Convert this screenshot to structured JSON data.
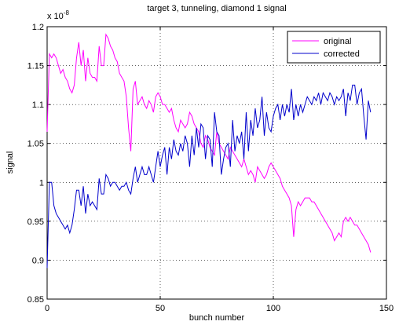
{
  "chart_data": {
    "type": "line",
    "title": "target 3, tunneling, diamond 1 signal",
    "x_label": "bunch number",
    "y_label": "signal",
    "y_multiplier": {
      "base": "x 10",
      "exponent": "-8"
    },
    "x": [
      0,
      1,
      2,
      3,
      4,
      5,
      6,
      7,
      8,
      9,
      10,
      11,
      12,
      13,
      14,
      15,
      16,
      17,
      18,
      19,
      20,
      21,
      22,
      23,
      24,
      25,
      26,
      27,
      28,
      29,
      30,
      31,
      32,
      33,
      34,
      35,
      36,
      37,
      38,
      39,
      40,
      41,
      42,
      43,
      44,
      45,
      46,
      47,
      48,
      49,
      50,
      51,
      52,
      53,
      54,
      55,
      56,
      57,
      58,
      59,
      60,
      61,
      62,
      63,
      64,
      65,
      66,
      67,
      68,
      69,
      70,
      71,
      72,
      73,
      74,
      75,
      76,
      77,
      78,
      79,
      80,
      81,
      82,
      83,
      84,
      85,
      86,
      87,
      88,
      89,
      90,
      91,
      92,
      93,
      94,
      95,
      96,
      97,
      98,
      99,
      100,
      101,
      102,
      103,
      104,
      105,
      106,
      107,
      108,
      109,
      110,
      111,
      112,
      113,
      114,
      115,
      116,
      117,
      118,
      119,
      120,
      121,
      122,
      123,
      124,
      125,
      126,
      127,
      128,
      129,
      130,
      131,
      132,
      133,
      134,
      135,
      136,
      137,
      138,
      139,
      140,
      141,
      142,
      143
    ],
    "series": [
      {
        "name": "original",
        "color": "#ff00ff",
        "values": [
          1.065,
          1.165,
          1.16,
          1.165,
          1.16,
          1.15,
          1.14,
          1.145,
          1.135,
          1.13,
          1.12,
          1.115,
          1.125,
          1.16,
          1.18,
          1.15,
          1.17,
          1.13,
          1.16,
          1.14,
          1.135,
          1.135,
          1.13,
          1.175,
          1.15,
          1.15,
          1.19,
          1.185,
          1.175,
          1.17,
          1.16,
          1.155,
          1.14,
          1.135,
          1.13,
          1.11,
          1.07,
          1.04,
          1.12,
          1.13,
          1.1,
          1.105,
          1.11,
          1.1,
          1.095,
          1.105,
          1.1,
          1.09,
          1.11,
          1.115,
          1.11,
          1.1,
          1.1,
          1.095,
          1.09,
          1.095,
          1.08,
          1.07,
          1.065,
          1.08,
          1.075,
          1.07,
          1.075,
          1.09,
          1.085,
          1.075,
          1.07,
          1.065,
          1.05,
          1.045,
          1.06,
          1.055,
          1.045,
          1.04,
          1.035,
          1.065,
          1.05,
          1.045,
          1.04,
          1.035,
          1.03,
          1.045,
          1.04,
          1.035,
          1.03,
          1.025,
          1.02,
          1.03,
          1.02,
          1.01,
          1.015,
          1.01,
          1.0,
          1.02,
          1.015,
          1.01,
          1.005,
          1.01,
          1.02,
          1.025,
          1.02,
          1.015,
          1.01,
          1.005,
          0.995,
          0.99,
          0.985,
          0.98,
          0.97,
          0.93,
          0.965,
          0.975,
          0.97,
          0.975,
          0.98,
          0.98,
          0.98,
          0.975,
          0.975,
          0.97,
          0.965,
          0.96,
          0.955,
          0.95,
          0.945,
          0.94,
          0.935,
          0.925,
          0.93,
          0.935,
          0.93,
          0.95,
          0.955,
          0.95,
          0.955,
          0.95,
          0.945,
          0.945,
          0.94,
          0.935,
          0.93,
          0.925,
          0.92,
          0.91
        ]
      },
      {
        "name": "corrected",
        "color": "#0000cc",
        "values": [
          0.89,
          1.0,
          1.0,
          0.97,
          0.96,
          0.955,
          0.95,
          0.945,
          0.94,
          0.945,
          0.935,
          0.945,
          0.965,
          0.99,
          0.99,
          0.97,
          0.995,
          0.96,
          0.985,
          0.97,
          0.975,
          0.97,
          0.965,
          1.005,
          0.985,
          0.985,
          1.01,
          1.005,
          0.995,
          1.0,
          1.0,
          0.995,
          0.99,
          0.995,
          0.995,
          1.0,
          0.99,
          0.985,
          1.005,
          1.02,
          1.0,
          1.01,
          1.02,
          1.01,
          1.01,
          1.02,
          1.01,
          1.0,
          1.02,
          1.04,
          1.02,
          1.035,
          1.045,
          1.01,
          1.045,
          1.03,
          1.055,
          1.04,
          1.035,
          1.05,
          1.04,
          1.06,
          1.05,
          1.02,
          1.06,
          1.035,
          1.07,
          1.045,
          1.075,
          1.07,
          1.03,
          1.06,
          1.055,
          1.02,
          1.09,
          1.065,
          1.06,
          1.01,
          1.03,
          1.045,
          1.05,
          1.02,
          1.08,
          1.04,
          1.06,
          1.05,
          1.065,
          1.03,
          1.09,
          1.04,
          1.08,
          1.06,
          1.095,
          1.07,
          1.08,
          1.11,
          1.06,
          1.09,
          1.07,
          1.065,
          1.085,
          1.095,
          1.1,
          1.08,
          1.1,
          1.085,
          1.1,
          1.09,
          1.12,
          1.08,
          1.1,
          1.085,
          1.1,
          1.09,
          1.1,
          1.11,
          1.105,
          1.1,
          1.11,
          1.105,
          1.115,
          1.1,
          1.115,
          1.11,
          1.105,
          1.115,
          1.11,
          1.1,
          1.11,
          1.105,
          1.11,
          1.12,
          1.085,
          1.115,
          1.105,
          1.125,
          1.125,
          1.1,
          1.115,
          1.12,
          1.085,
          1.055,
          1.105,
          1.09
        ]
      }
    ],
    "xlim": [
      0,
      150
    ],
    "xticks": [
      0,
      50,
      100,
      150
    ],
    "ylim": [
      0.85,
      1.2
    ],
    "yticks": [
      0.85,
      0.9,
      0.95,
      1,
      1.05,
      1.1,
      1.15,
      1.2
    ],
    "grid": true,
    "legend": "northeast"
  }
}
